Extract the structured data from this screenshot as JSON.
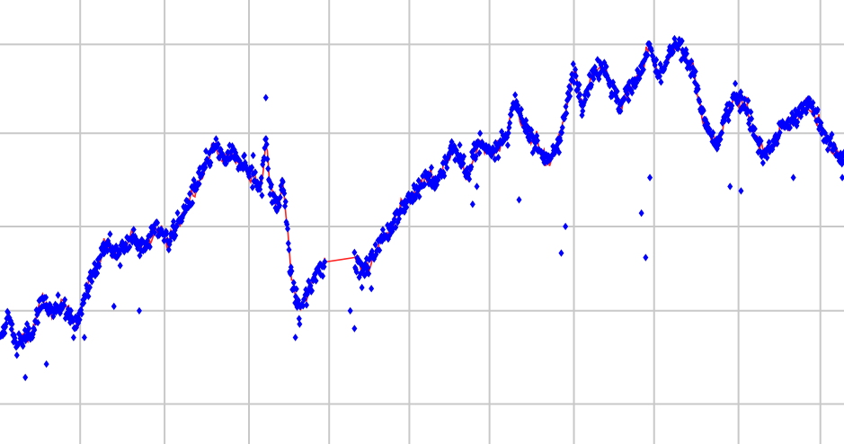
{
  "chart_data": {
    "type": "scatter",
    "title": "",
    "xlabel": "",
    "ylabel": "",
    "xlim": [
      0,
      1000
    ],
    "ylim": [
      0,
      100
    ],
    "grid": true,
    "legend": "none",
    "x_gridlines": [
      95,
      195,
      295,
      390,
      485,
      580,
      680,
      775,
      875,
      972
    ],
    "y_gridlines": [
      9,
      30,
      49,
      70,
      90
    ],
    "series": [
      {
        "marker": "diamond",
        "color": "#0000ff",
        "line_color": "#ff2020",
        "anchors": [
          [
            0,
            23
          ],
          [
            10,
            29
          ],
          [
            20,
            22
          ],
          [
            40,
            26
          ],
          [
            50,
            33
          ],
          [
            60,
            29
          ],
          [
            75,
            32
          ],
          [
            90,
            26
          ],
          [
            105,
            36
          ],
          [
            115,
            40
          ],
          [
            125,
            46
          ],
          [
            140,
            42
          ],
          [
            155,
            47
          ],
          [
            170,
            44
          ],
          [
            185,
            49
          ],
          [
            200,
            46
          ],
          [
            215,
            51
          ],
          [
            230,
            57
          ],
          [
            245,
            63
          ],
          [
            255,
            67
          ],
          [
            265,
            64
          ],
          [
            275,
            65
          ],
          [
            290,
            63
          ],
          [
            300,
            60
          ],
          [
            310,
            58
          ],
          [
            315,
            70
          ],
          [
            320,
            57
          ],
          [
            330,
            53
          ],
          [
            335,
            60
          ],
          [
            340,
            49
          ],
          [
            345,
            37
          ],
          [
            355,
            30
          ],
          [
            365,
            34
          ],
          [
            375,
            39
          ],
          [
            385,
            41
          ],
          [
            420,
            42
          ],
          [
            430,
            38
          ],
          [
            445,
            44
          ],
          [
            460,
            48
          ],
          [
            475,
            53
          ],
          [
            490,
            56
          ],
          [
            505,
            60
          ],
          [
            520,
            59
          ],
          [
            535,
            67
          ],
          [
            545,
            65
          ],
          [
            555,
            60
          ],
          [
            565,
            68
          ],
          [
            580,
            66
          ],
          [
            600,
            69
          ],
          [
            610,
            77
          ],
          [
            620,
            72
          ],
          [
            635,
            68
          ],
          [
            650,
            63
          ],
          [
            665,
            70
          ],
          [
            680,
            84
          ],
          [
            690,
            77
          ],
          [
            700,
            82
          ],
          [
            715,
            86
          ],
          [
            725,
            80
          ],
          [
            735,
            76
          ],
          [
            745,
            80
          ],
          [
            760,
            84
          ],
          [
            770,
            90
          ],
          [
            780,
            82
          ],
          [
            790,
            86
          ],
          [
            800,
            90
          ],
          [
            810,
            88
          ],
          [
            820,
            85
          ],
          [
            835,
            72
          ],
          [
            850,
            67
          ],
          [
            860,
            74
          ],
          [
            870,
            79
          ],
          [
            885,
            76
          ],
          [
            895,
            69
          ],
          [
            905,
            65
          ],
          [
            915,
            67
          ],
          [
            925,
            71
          ],
          [
            940,
            73
          ],
          [
            955,
            77
          ],
          [
            965,
            75
          ],
          [
            975,
            70
          ],
          [
            990,
            66
          ],
          [
            1000,
            64
          ]
        ],
        "gap": [
          385,
          420
        ],
        "outliers": [
          [
            20,
            20
          ],
          [
            30,
            15
          ],
          [
            55,
            18
          ],
          [
            100,
            24
          ],
          [
            135,
            31
          ],
          [
            165,
            30
          ],
          [
            315,
            78
          ],
          [
            300,
            65
          ],
          [
            350,
            24
          ],
          [
            355,
            27
          ],
          [
            415,
            30
          ],
          [
            420,
            26
          ],
          [
            440,
            35
          ],
          [
            560,
            54
          ],
          [
            565,
            58
          ],
          [
            615,
            55
          ],
          [
            665,
            43
          ],
          [
            670,
            49
          ],
          [
            760,
            52
          ],
          [
            765,
            42
          ],
          [
            770,
            60
          ],
          [
            865,
            58
          ],
          [
            878,
            57
          ],
          [
            940,
            60
          ],
          [
            998,
            60
          ]
        ]
      }
    ]
  }
}
